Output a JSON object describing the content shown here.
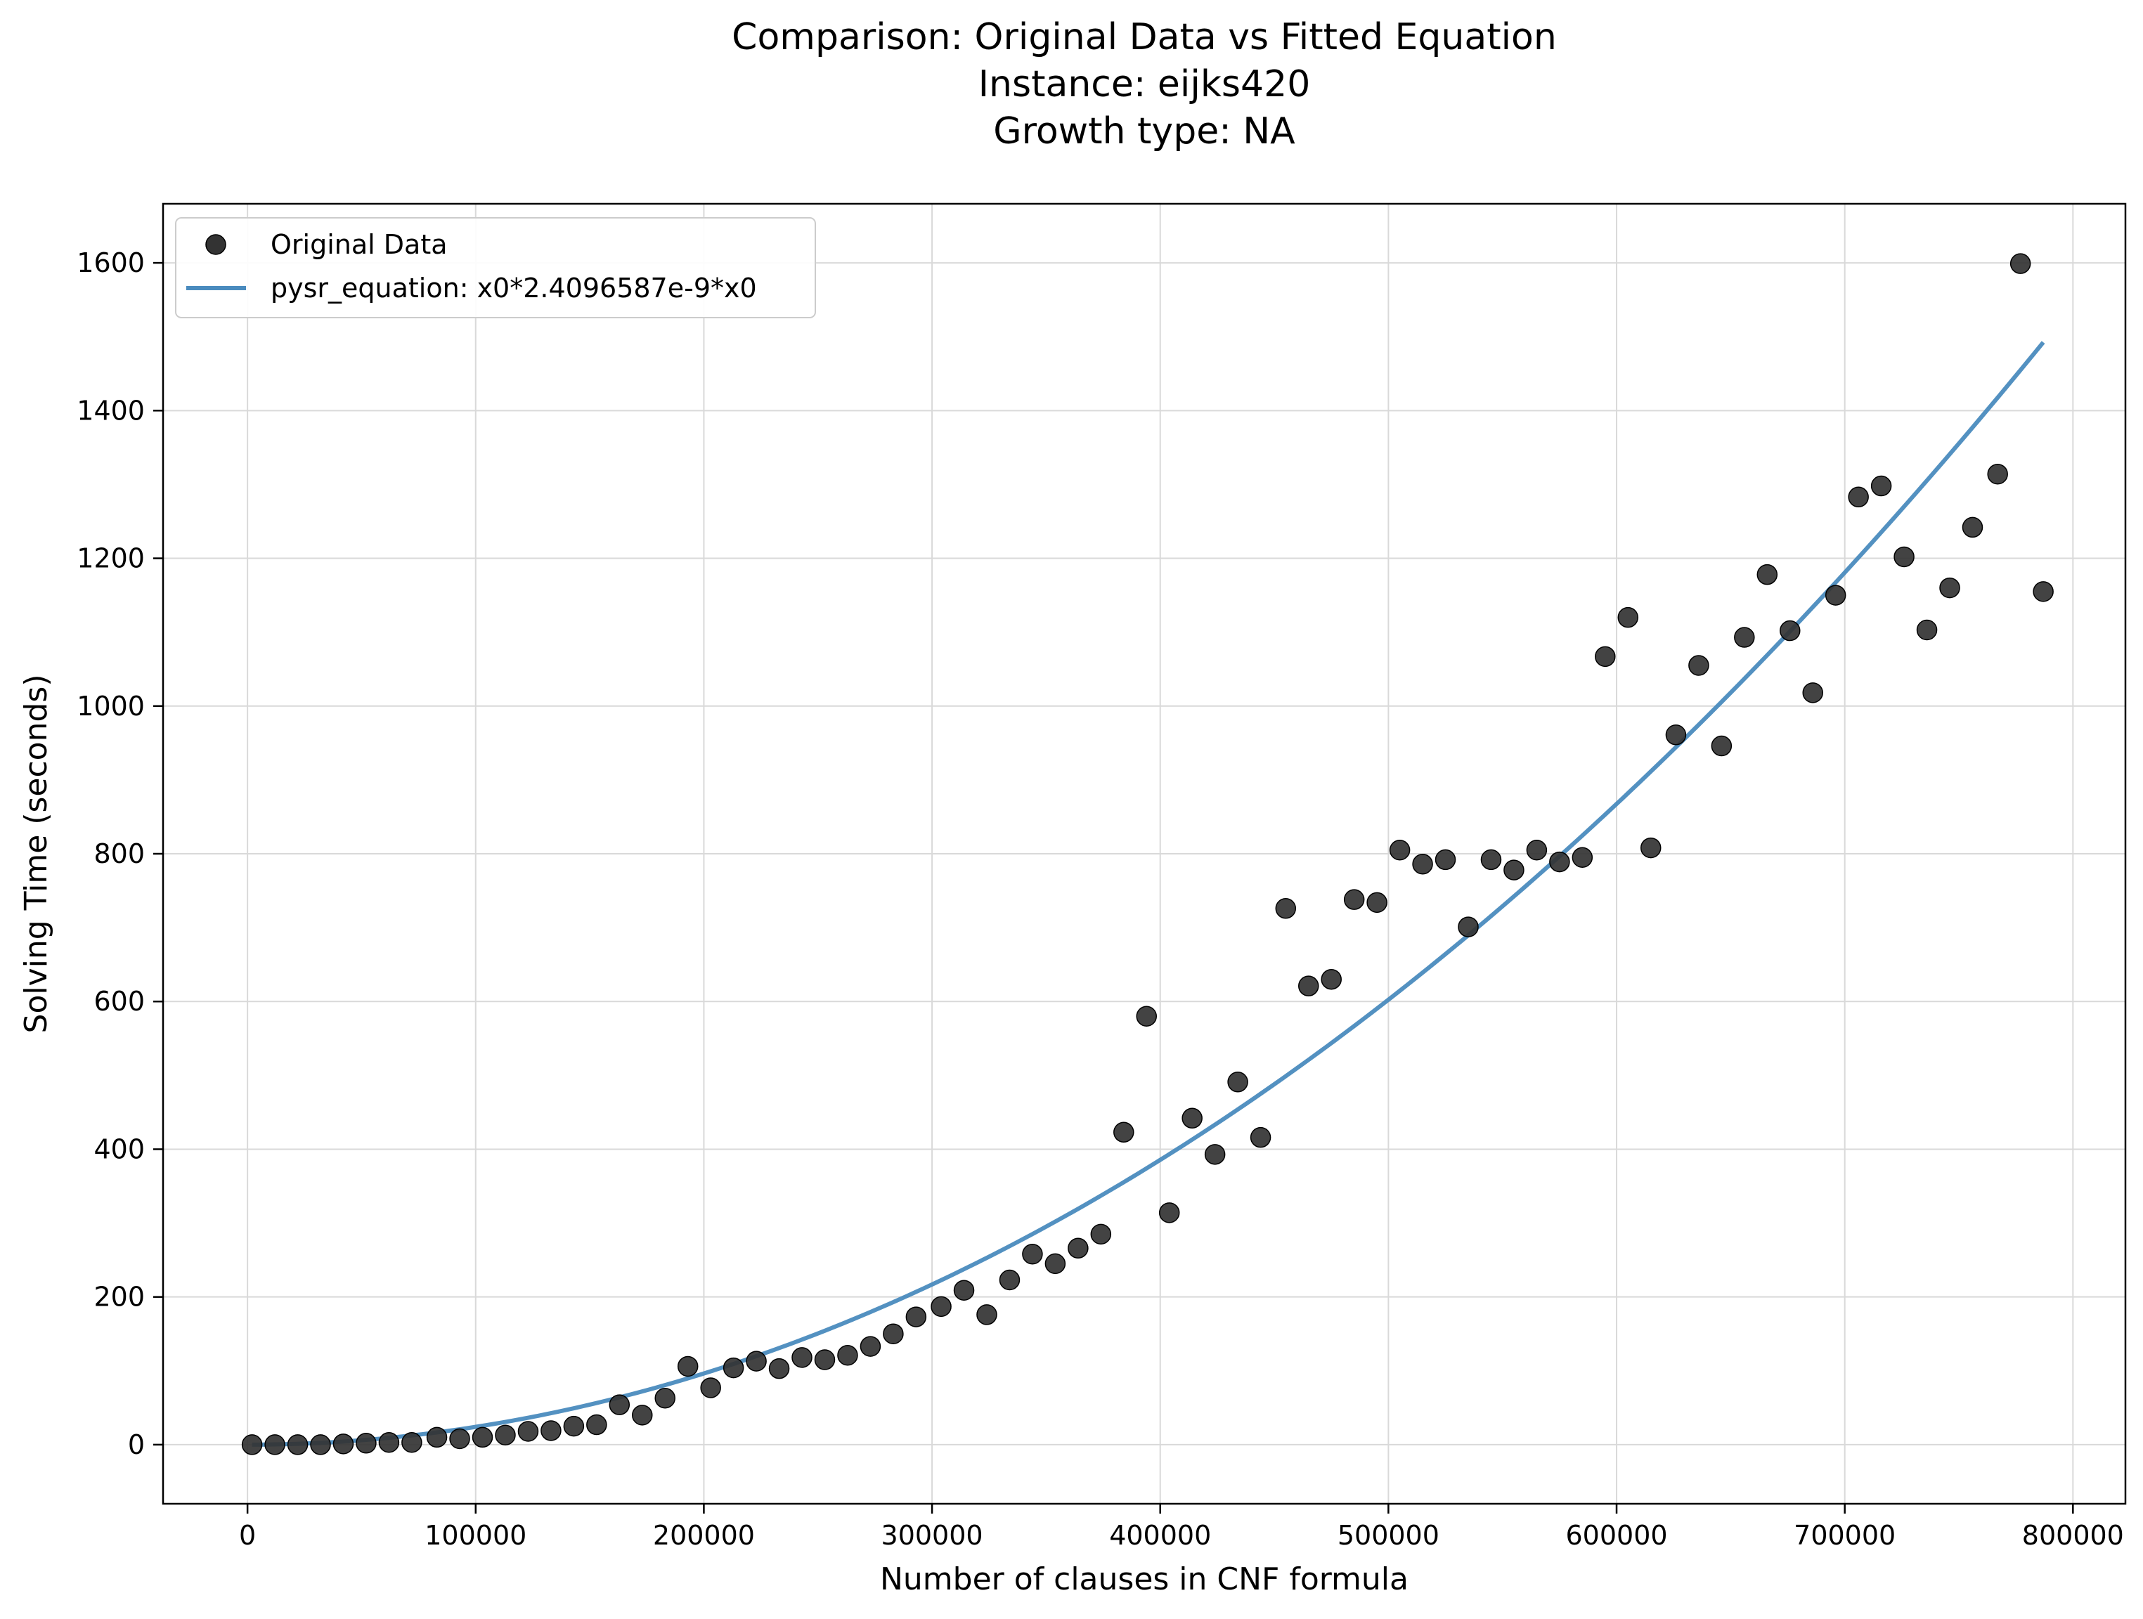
{
  "chart_data": {
    "type": "scatter",
    "title": [
      "Comparison: Original Data vs Fitted Equation",
      "Instance: eijks420",
      "Growth type: NA"
    ],
    "xlabel": "Number of clauses in CNF formula",
    "ylabel": "Solving Time (seconds)",
    "xlim": [
      -37000,
      823000
    ],
    "ylim": [
      -80,
      1680
    ],
    "xticks": [
      0,
      100000,
      200000,
      300000,
      400000,
      500000,
      600000,
      700000,
      800000
    ],
    "yticks": [
      0,
      200,
      400,
      600,
      800,
      1000,
      1200,
      1400,
      1600
    ],
    "grid": true,
    "legend_position": "top-left",
    "series": [
      {
        "name": "Original Data",
        "kind": "scatter",
        "color": "#333333",
        "points": [
          [
            2000,
            0
          ],
          [
            12000,
            0
          ],
          [
            22000,
            0
          ],
          [
            32000,
            0
          ],
          [
            42000,
            1
          ],
          [
            52000,
            2
          ],
          [
            62000,
            3
          ],
          [
            72000,
            3
          ],
          [
            83000,
            10
          ],
          [
            93000,
            8
          ],
          [
            103000,
            10
          ],
          [
            113000,
            13
          ],
          [
            123000,
            18
          ],
          [
            133000,
            19
          ],
          [
            143000,
            25
          ],
          [
            153000,
            27
          ],
          [
            163000,
            54
          ],
          [
            173000,
            40
          ],
          [
            183000,
            63
          ],
          [
            193000,
            106
          ],
          [
            203000,
            77
          ],
          [
            213000,
            104
          ],
          [
            223000,
            113
          ],
          [
            233000,
            103
          ],
          [
            243000,
            118
          ],
          [
            253000,
            115
          ],
          [
            263000,
            121
          ],
          [
            273000,
            133
          ],
          [
            283000,
            150
          ],
          [
            293000,
            173
          ],
          [
            304000,
            187
          ],
          [
            314000,
            209
          ],
          [
            324000,
            176
          ],
          [
            334000,
            223
          ],
          [
            344000,
            258
          ],
          [
            354000,
            245
          ],
          [
            364000,
            266
          ],
          [
            374000,
            285
          ],
          [
            384000,
            423
          ],
          [
            394000,
            580
          ],
          [
            404000,
            314
          ],
          [
            414000,
            442
          ],
          [
            424000,
            393
          ],
          [
            434000,
            491
          ],
          [
            444000,
            416
          ],
          [
            455000,
            726
          ],
          [
            465000,
            621
          ],
          [
            475000,
            630
          ],
          [
            485000,
            738
          ],
          [
            495000,
            734
          ],
          [
            505000,
            805
          ],
          [
            515000,
            786
          ],
          [
            525000,
            792
          ],
          [
            535000,
            701
          ],
          [
            545000,
            792
          ],
          [
            555000,
            778
          ],
          [
            565000,
            805
          ],
          [
            575000,
            789
          ],
          [
            585000,
            795
          ],
          [
            595000,
            1067
          ],
          [
            605000,
            1120
          ],
          [
            615000,
            808
          ],
          [
            626000,
            961
          ],
          [
            636000,
            1055
          ],
          [
            646000,
            946
          ],
          [
            656000,
            1093
          ],
          [
            666000,
            1178
          ],
          [
            676000,
            1102
          ],
          [
            686000,
            1018
          ],
          [
            696000,
            1150
          ],
          [
            706000,
            1283
          ],
          [
            716000,
            1298
          ],
          [
            726000,
            1202
          ],
          [
            736000,
            1103
          ],
          [
            746000,
            1160
          ],
          [
            756000,
            1242
          ],
          [
            767000,
            1314
          ],
          [
            777000,
            1599
          ],
          [
            787000,
            1155
          ]
        ]
      },
      {
        "name": "pysr_equation: x0*2.4096587e-9*x0",
        "kind": "line",
        "color": "#4a8bbe",
        "equation_coefficient": 2.4096587e-09,
        "x_range": [
          2000,
          787000
        ]
      }
    ]
  }
}
